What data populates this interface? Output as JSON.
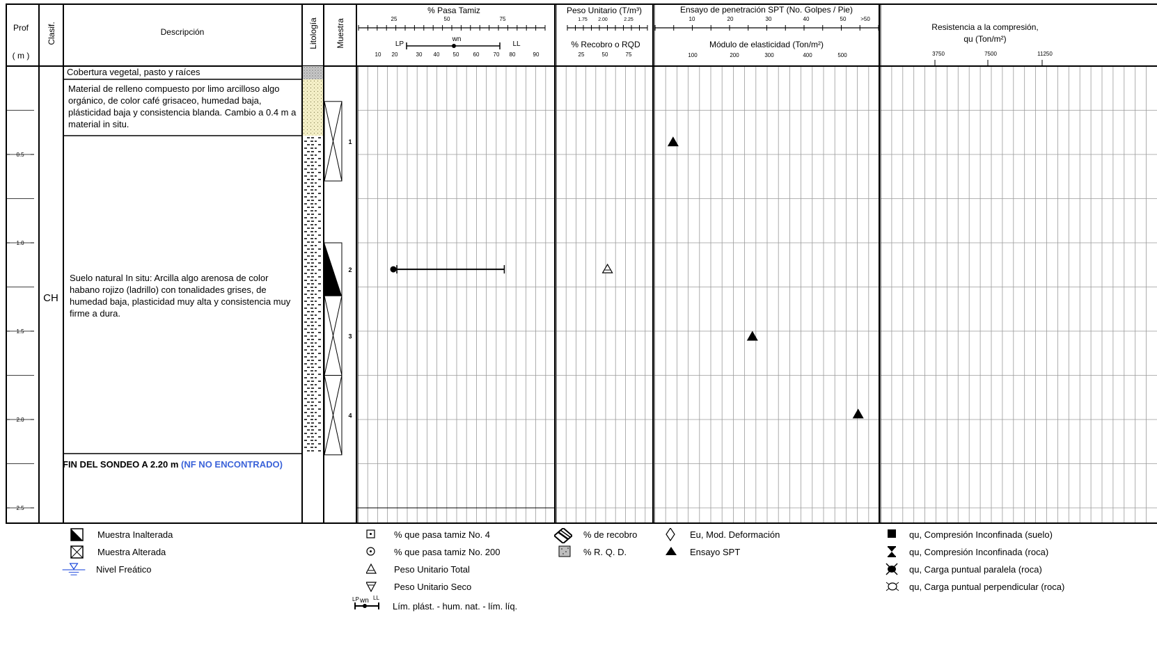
{
  "header": {
    "prof": "Prof",
    "prof_unit": "( m )",
    "clasif": "Clasif.",
    "descripcion": "Descripción",
    "litologia": "Litología",
    "muestra": "Muestra",
    "pasa_tamiz": "% Pasa Tamiz",
    "pasa_ticks": [
      "25",
      "50",
      "75"
    ],
    "lp": "LP",
    "wn": "wn",
    "ll": "LL",
    "bottom_ticks": [
      "10",
      "20",
      "30",
      "40",
      "50",
      "60",
      "70",
      "80",
      "90"
    ],
    "peso_unitario": "Peso Unitario (T/m³)",
    "peso_ticks": [
      "1.75",
      "2.00",
      "2.25"
    ],
    "recobro": "% Recobro o RQD",
    "recobro_ticks": [
      "25",
      "50",
      "75"
    ],
    "spt": "Ensayo de penetración SPT (No. Golpes / Pie)",
    "spt_ticks": [
      "10",
      "20",
      "30",
      "40",
      "50",
      ">50"
    ],
    "modulo": "Módulo de elasticidad (Ton/m²)",
    "modulo_ticks": [
      "100",
      "200",
      "300",
      "400",
      "500"
    ],
    "resistencia_1": "Resistencia a la compresión,",
    "resistencia_2": "qu (Ton/m²)",
    "resistencia_ticks": [
      "3750",
      "7500",
      "11250"
    ]
  },
  "depth_ticks": [
    "0.5",
    "1.0",
    "1.5",
    "2.0",
    "2.5"
  ],
  "clasificacion": "CH",
  "layers": [
    {
      "text": "Cobertura vegetal, pasto y raíces"
    },
    {
      "text": "Material de relleno compuesto por limo arcilloso algo orgánico, de color café grisaceo, humedad baja, plásticidad baja y consistencia blanda. Cambio a 0.4 m a material in situ."
    },
    {
      "text": "Suelo natural In situ: Arcilla algo arenosa de color habano rojizo (ladrillo) con tonalidades grises, de humedad baja, plasticidad muy alta y consistencia muy firme a dura."
    }
  ],
  "fin_sondeo": "FIN DEL SONDEO A 2.20 m",
  "fin_nf": "(NF NO ENCONTRADO)",
  "samples": [
    {
      "label": "1",
      "type": "alterada",
      "top": 0.2,
      "bottom": 0.65
    },
    {
      "label": "2",
      "type": "inalterada",
      "top": 1.0,
      "bottom": 1.3
    },
    {
      "label": "3",
      "type": "alterada",
      "top": 1.3,
      "bottom": 1.75
    },
    {
      "label": "4",
      "type": "alterada",
      "top": 1.75,
      "bottom": 2.2
    }
  ],
  "chart_data": {
    "type": "scatter",
    "depth_axis": {
      "label": "Prof ( m )",
      "range": [
        0,
        2.55
      ],
      "inverted": true
    },
    "atterberg_limits": [
      {
        "depth": 1.15,
        "LP": 21,
        "wn": 22,
        "LL": 74
      }
    ],
    "peso_unitario_total": [
      {
        "depth": 1.15,
        "value": 2.02
      }
    ],
    "spt": [
      {
        "depth": 0.43,
        "golpes": 5
      },
      {
        "depth": 1.53,
        "golpes": 26
      },
      {
        "depth": 1.97,
        "golpes": 54
      }
    ]
  },
  "legend": {
    "col1": [
      "Muestra Inalterada",
      "Muestra Alterada",
      "Nivel Freático"
    ],
    "col2": [
      "% que pasa tamiz No. 4",
      "% que pasa tamiz No. 200",
      "Peso Unitario Total",
      "Peso Unitario Seco"
    ],
    "col2_last": "Lím. plást. - hum. nat. - lím. líq.",
    "col2_last_lp": "LP",
    "col2_last_wn": "wn",
    "col2_last_ll": "LL",
    "col3": [
      "% de recobro",
      "% R. Q. D."
    ],
    "col4": [
      "Eu, Mod. Deformación",
      "Ensayo SPT"
    ],
    "col5": [
      "qu, Compresión Inconfinada (suelo)",
      "qu, Compresión Inconfinada (roca)",
      "qu, Carga puntual paralela (roca)",
      "qu, Carga puntual perpendicular (roca)"
    ]
  },
  "colors": {
    "nf_highlight": "#3b63d9",
    "grid": "#9a9a9a",
    "legend_blue": "#0b3bd9"
  }
}
